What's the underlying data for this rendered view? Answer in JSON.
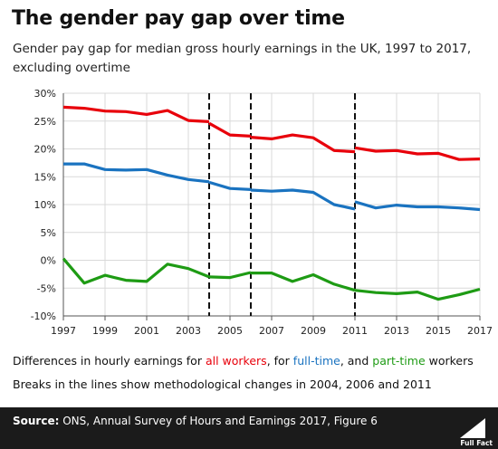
{
  "header": {
    "title": "The gender pay gap over time",
    "subtitle": "Gender pay gap for median gross hourly earnings in the UK, 1997 to 2017, excluding overtime"
  },
  "caption": {
    "line1_prefix": "Differences in hourly earnings for ",
    "line1_all": "all workers",
    "line1_mid": ", for ",
    "line1_full": "full-time",
    "line1_mid2": ", and ",
    "line1_part": "part-time",
    "line1_suffix": " workers",
    "line2": "Breaks in the lines show methodological  changes in 2004, 2006 and 2011"
  },
  "footer": {
    "source_label": "Source:",
    "source_text": " ONS, Annual Survey of Hours and Earnings 2017, Figure 6",
    "logo_text": "Full Fact"
  },
  "colors": {
    "all_workers": "#e8000b",
    "full_time": "#1a73c0",
    "part_time": "#1e9b14",
    "footer_bg": "#1b1b1b"
  },
  "chart_data": {
    "type": "line",
    "title": "",
    "xlabel": "",
    "ylabel": "",
    "xlim": [
      1997,
      2017
    ],
    "ylim": [
      -10,
      30
    ],
    "x_ticks": [
      1997,
      1999,
      2001,
      2003,
      2005,
      2007,
      2009,
      2011,
      2013,
      2015,
      2017
    ],
    "y_ticks": [
      "-10%",
      "-5%",
      "0%",
      "5%",
      "10%",
      "15%",
      "20%",
      "25%",
      "30%"
    ],
    "y_tick_values": [
      -10,
      -5,
      0,
      5,
      10,
      15,
      20,
      25,
      30
    ],
    "grid": true,
    "breaks": [
      2004,
      2006,
      2011
    ],
    "series": [
      {
        "key": "all_workers",
        "segments": [
          {
            "x": [
              1997,
              1998,
              1999,
              2000,
              2001,
              2002,
              2003,
              2004
            ],
            "y": [
              27.5,
              27.3,
              26.8,
              26.7,
              26.2,
              26.9,
              25.1,
              24.9
            ]
          },
          {
            "x": [
              2004,
              2005,
              2006
            ],
            "y": [
              24.6,
              22.5,
              22.3
            ]
          },
          {
            "x": [
              2006,
              2007,
              2008,
              2009,
              2010,
              2011
            ],
            "y": [
              22.1,
              21.8,
              22.5,
              22.0,
              19.7,
              19.5
            ]
          },
          {
            "x": [
              2011,
              2012,
              2013,
              2014,
              2015,
              2016,
              2017
            ],
            "y": [
              20.2,
              19.6,
              19.7,
              19.1,
              19.2,
              18.1,
              18.2
            ]
          }
        ]
      },
      {
        "key": "full_time",
        "segments": [
          {
            "x": [
              1997,
              1998,
              1999,
              2000,
              2001,
              2002,
              2003,
              2004
            ],
            "y": [
              17.3,
              17.3,
              16.3,
              16.2,
              16.3,
              15.3,
              14.5,
              14.1
            ]
          },
          {
            "x": [
              2004,
              2005,
              2006
            ],
            "y": [
              14.0,
              12.9,
              12.7
            ]
          },
          {
            "x": [
              2006,
              2007,
              2008,
              2009,
              2010,
              2011
            ],
            "y": [
              12.6,
              12.4,
              12.6,
              12.2,
              10.0,
              9.2
            ]
          },
          {
            "x": [
              2011,
              2012,
              2013,
              2014,
              2015,
              2016,
              2017
            ],
            "y": [
              10.5,
              9.4,
              9.9,
              9.6,
              9.6,
              9.4,
              9.1
            ]
          }
        ]
      },
      {
        "key": "part_time",
        "segments": [
          {
            "x": [
              1997,
              1998,
              1999,
              2000,
              2001,
              2002,
              2003,
              2004
            ],
            "y": [
              0.3,
              -4.1,
              -2.7,
              -3.6,
              -3.8,
              -0.7,
              -1.5,
              -3.0
            ]
          },
          {
            "x": [
              2004,
              2005,
              2006
            ],
            "y": [
              -3.0,
              -3.1,
              -2.2
            ]
          },
          {
            "x": [
              2006,
              2007,
              2008,
              2009,
              2010,
              2011
            ],
            "y": [
              -2.3,
              -2.3,
              -3.8,
              -2.6,
              -4.3,
              -5.4
            ]
          },
          {
            "x": [
              2011,
              2012,
              2013,
              2014,
              2015,
              2016,
              2017
            ],
            "y": [
              -5.4,
              -5.8,
              -6.0,
              -5.7,
              -7.0,
              -6.2,
              -5.2
            ]
          }
        ]
      }
    ]
  }
}
